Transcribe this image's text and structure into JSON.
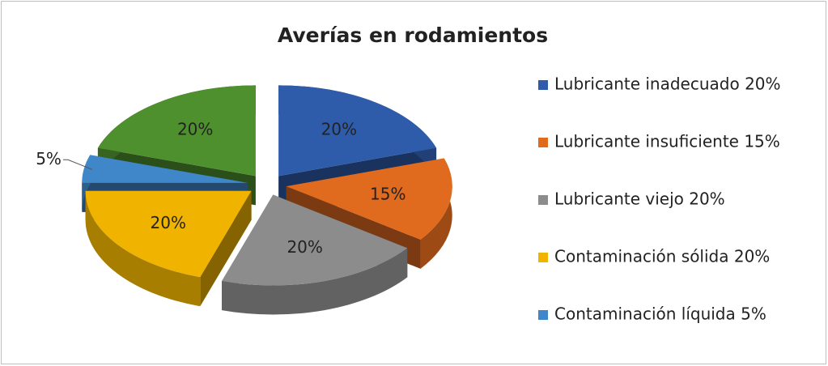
{
  "chart_data": {
    "type": "pie",
    "title": "Averías en rodamientos",
    "categories": [
      "Lubricante inadecuado 20%",
      "Lubricante insuficiente 15%",
      "Lubricante viejo 20%",
      "Contaminación sólida 20%",
      "Contaminación líquida 5%",
      null
    ],
    "values": [
      20,
      15,
      20,
      20,
      5,
      20
    ],
    "value_labels": [
      "20%",
      "15%",
      "20%",
      "20%",
      "5%",
      "20%"
    ],
    "colors": [
      "#2f5caa",
      "#e06a1e",
      "#8c8c8c",
      "#f0b400",
      "#3f87c8",
      "#4e8f2e"
    ],
    "legend": "right"
  }
}
